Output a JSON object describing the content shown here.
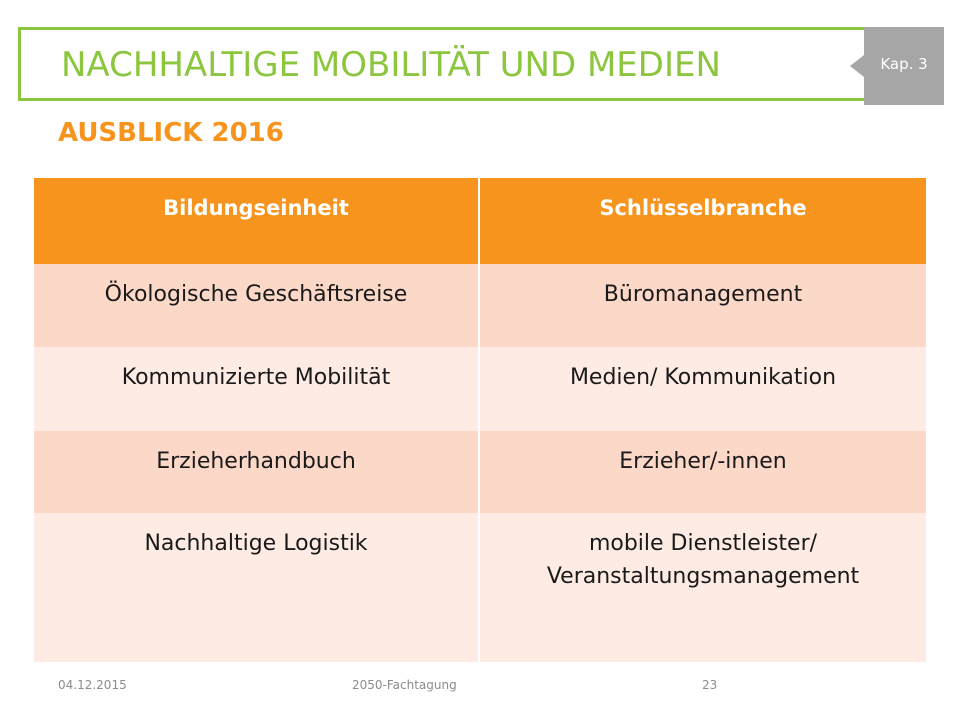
{
  "slide": {
    "title": "NACHHALTIGE MOBILITÄT UND MEDIEN",
    "chapter_tab": "Kap. 3",
    "subtitle": "AUSBLICK 2016",
    "accent_green": "#8cc63e",
    "accent_orange": "#f7941e"
  },
  "table": {
    "headers": [
      "Bildungseinheit",
      "Schlüsselbranche"
    ],
    "rows": [
      [
        "Ökologische Geschäftsreise",
        "Büromanagement"
      ],
      [
        "Kommunizierte Mobilität",
        "Medien/ Kommunikation"
      ],
      [
        "Erzieherhandbuch",
        "Erzieher/-innen"
      ],
      [
        "Nachhaltige Logistik",
        "mobile Dienstleister/ Veranstaltungsmanagement"
      ]
    ]
  },
  "footer": {
    "date": "04.12.2015",
    "event": "2050-Fachtagung",
    "page": "23"
  }
}
